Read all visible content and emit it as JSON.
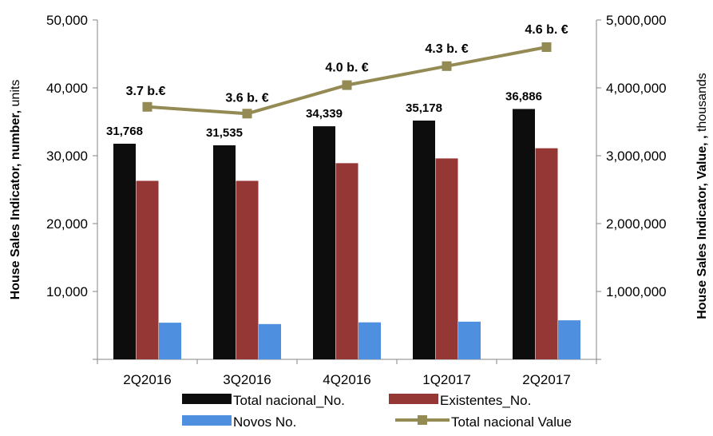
{
  "chart_data": {
    "type": "bar",
    "categories": [
      "2Q2016",
      "3Q2016",
      "4Q2016",
      "1Q2017",
      "2Q2017"
    ],
    "series": [
      {
        "name": "Total nacional_No.",
        "axis": "left",
        "type": "bar",
        "color": "#0d0d0d",
        "values": [
          31768,
          31535,
          34339,
          35178,
          36886
        ],
        "labels": [
          "31,768",
          "31,535",
          "34,339",
          "35,178",
          "36,886"
        ]
      },
      {
        "name": "Existentes_No.",
        "axis": "left",
        "type": "bar",
        "color": "#953735",
        "values": [
          26300,
          26300,
          28900,
          29600,
          31100
        ]
      },
      {
        "name": "Novos  No.",
        "axis": "left",
        "type": "bar",
        "color": "#4f8fdf",
        "values": [
          5400,
          5200,
          5450,
          5550,
          5750
        ]
      },
      {
        "name": "Total nacional  Value",
        "axis": "right",
        "type": "line",
        "color": "#948a54",
        "values": [
          3720000,
          3620000,
          4040000,
          4320000,
          4600000
        ],
        "labels": [
          "3.7 b.€",
          "3.6 b. €",
          "4.0 b. €",
          "4.3 b. €",
          "4.6 b. €"
        ]
      }
    ],
    "y_left": {
      "label_bold": "House Sales Indicator, number,",
      "label_rest": " units",
      "range": [
        0,
        50000
      ],
      "ticks": [
        "",
        "10,000",
        "20,000",
        "30,000",
        "40,000",
        "50,000"
      ]
    },
    "y_right": {
      "label_bold": "House Sales  Indicator, Value, ,",
      "label_rest": " thousands",
      "range": [
        0,
        5000000
      ],
      "ticks": [
        "",
        "1,000,000",
        "2,000,000",
        "3,000,000",
        "4,000,000",
        "5,000,000"
      ]
    },
    "grid": false,
    "legend_position": "bottom"
  }
}
